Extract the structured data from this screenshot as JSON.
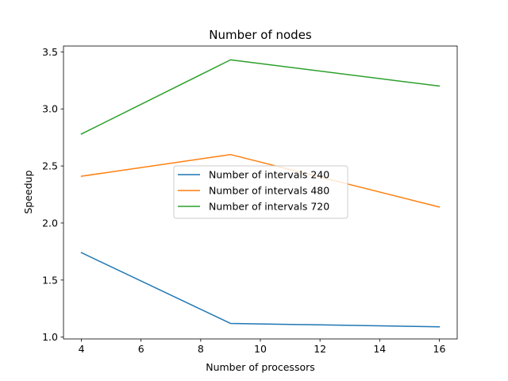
{
  "chart_data": {
    "type": "line",
    "title": "Number of nodes",
    "xlabel": "Number of processors",
    "ylabel": "Speedup",
    "xlim": [
      3.4,
      16.6
    ],
    "ylim": [
      0.984,
      3.551
    ],
    "xticks": [
      4,
      6,
      8,
      10,
      12,
      14,
      16
    ],
    "yticks": [
      1.0,
      1.5,
      2.0,
      2.5,
      3.0,
      3.5
    ],
    "ytick_labels": [
      "1.0",
      "1.5",
      "2.0",
      "2.5",
      "3.0",
      "3.5"
    ],
    "grid": false,
    "legend_position": "center",
    "x": [
      4,
      9,
      16
    ],
    "series": [
      {
        "name": "Number of intervals 240",
        "color": "#1f77b4",
        "values": [
          1.74,
          1.12,
          1.09
        ]
      },
      {
        "name": "Number of intervals 480",
        "color": "#ff7f0e",
        "values": [
          2.41,
          2.6,
          2.14
        ]
      },
      {
        "name": "Number of intervals 720",
        "color": "#2ca02c",
        "values": [
          2.78,
          3.43,
          3.2
        ]
      }
    ]
  }
}
